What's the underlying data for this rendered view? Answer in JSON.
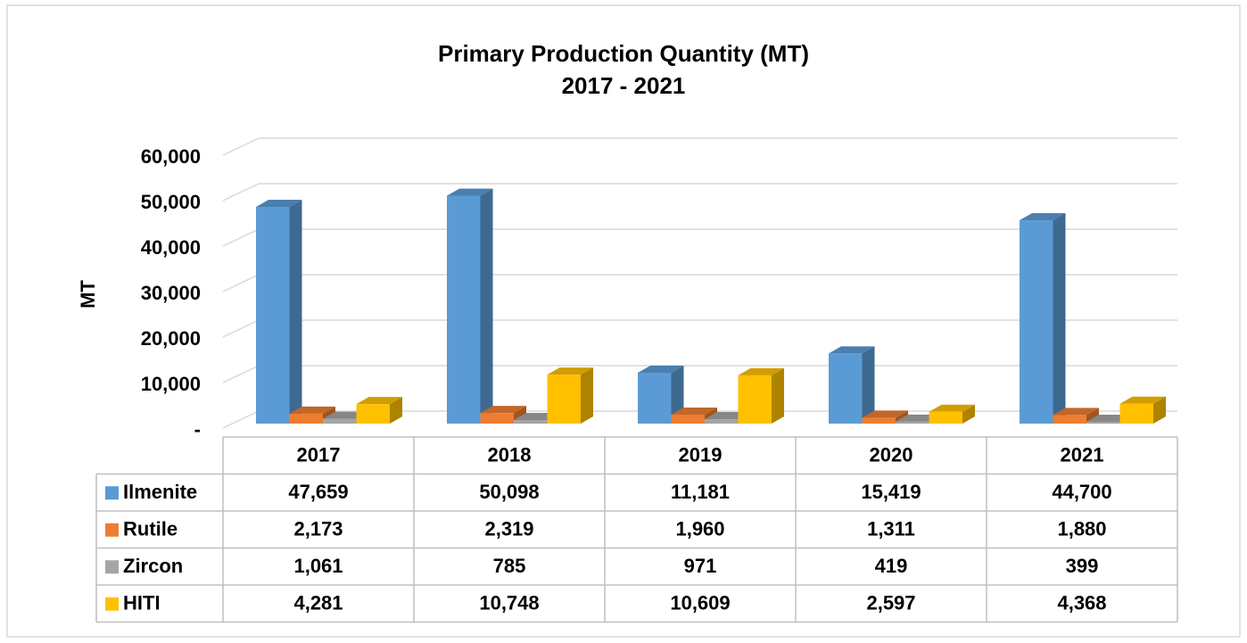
{
  "chart_data": {
    "type": "bar3d",
    "title": "Primary Production Quantity (MT)",
    "subtitle": "2017 - 2021",
    "y_label": "MT",
    "categories": [
      "2017",
      "2018",
      "2019",
      "2020",
      "2021"
    ],
    "series": [
      {
        "name": "Ilmenite",
        "color": "#5b9bd5",
        "values": [
          47659,
          50098,
          11181,
          15419,
          44700
        ],
        "value_labels": [
          "47,659",
          "50,098",
          "11,181",
          "15,419",
          "44,700"
        ]
      },
      {
        "name": "Rutile",
        "color": "#ed7d31",
        "values": [
          2173,
          2319,
          1960,
          1311,
          1880
        ],
        "value_labels": [
          "2,173",
          "2,319",
          "1,960",
          "1,311",
          "1,880"
        ]
      },
      {
        "name": "Zircon",
        "color": "#a5a5a5",
        "values": [
          1061,
          785,
          971,
          419,
          399
        ],
        "value_labels": [
          "1,061",
          "785",
          "971",
          "419",
          "399"
        ]
      },
      {
        "name": "HITI",
        "color": "#ffc000",
        "values": [
          4281,
          10748,
          10609,
          2597,
          4368
        ],
        "value_labels": [
          "4,281",
          "10,748",
          "10,609",
          "2,597",
          "4,368"
        ]
      }
    ],
    "ylim": [
      0,
      60000
    ],
    "yticks": [
      {
        "value": 0,
        "label": "-"
      },
      {
        "value": 10000,
        "label": "10,000"
      },
      {
        "value": 20000,
        "label": "20,000"
      },
      {
        "value": 30000,
        "label": "30,000"
      },
      {
        "value": 40000,
        "label": "40,000"
      },
      {
        "value": 50000,
        "label": "50,000"
      },
      {
        "value": 60000,
        "label": "60,000"
      }
    ],
    "grid": true,
    "legend": "table"
  }
}
